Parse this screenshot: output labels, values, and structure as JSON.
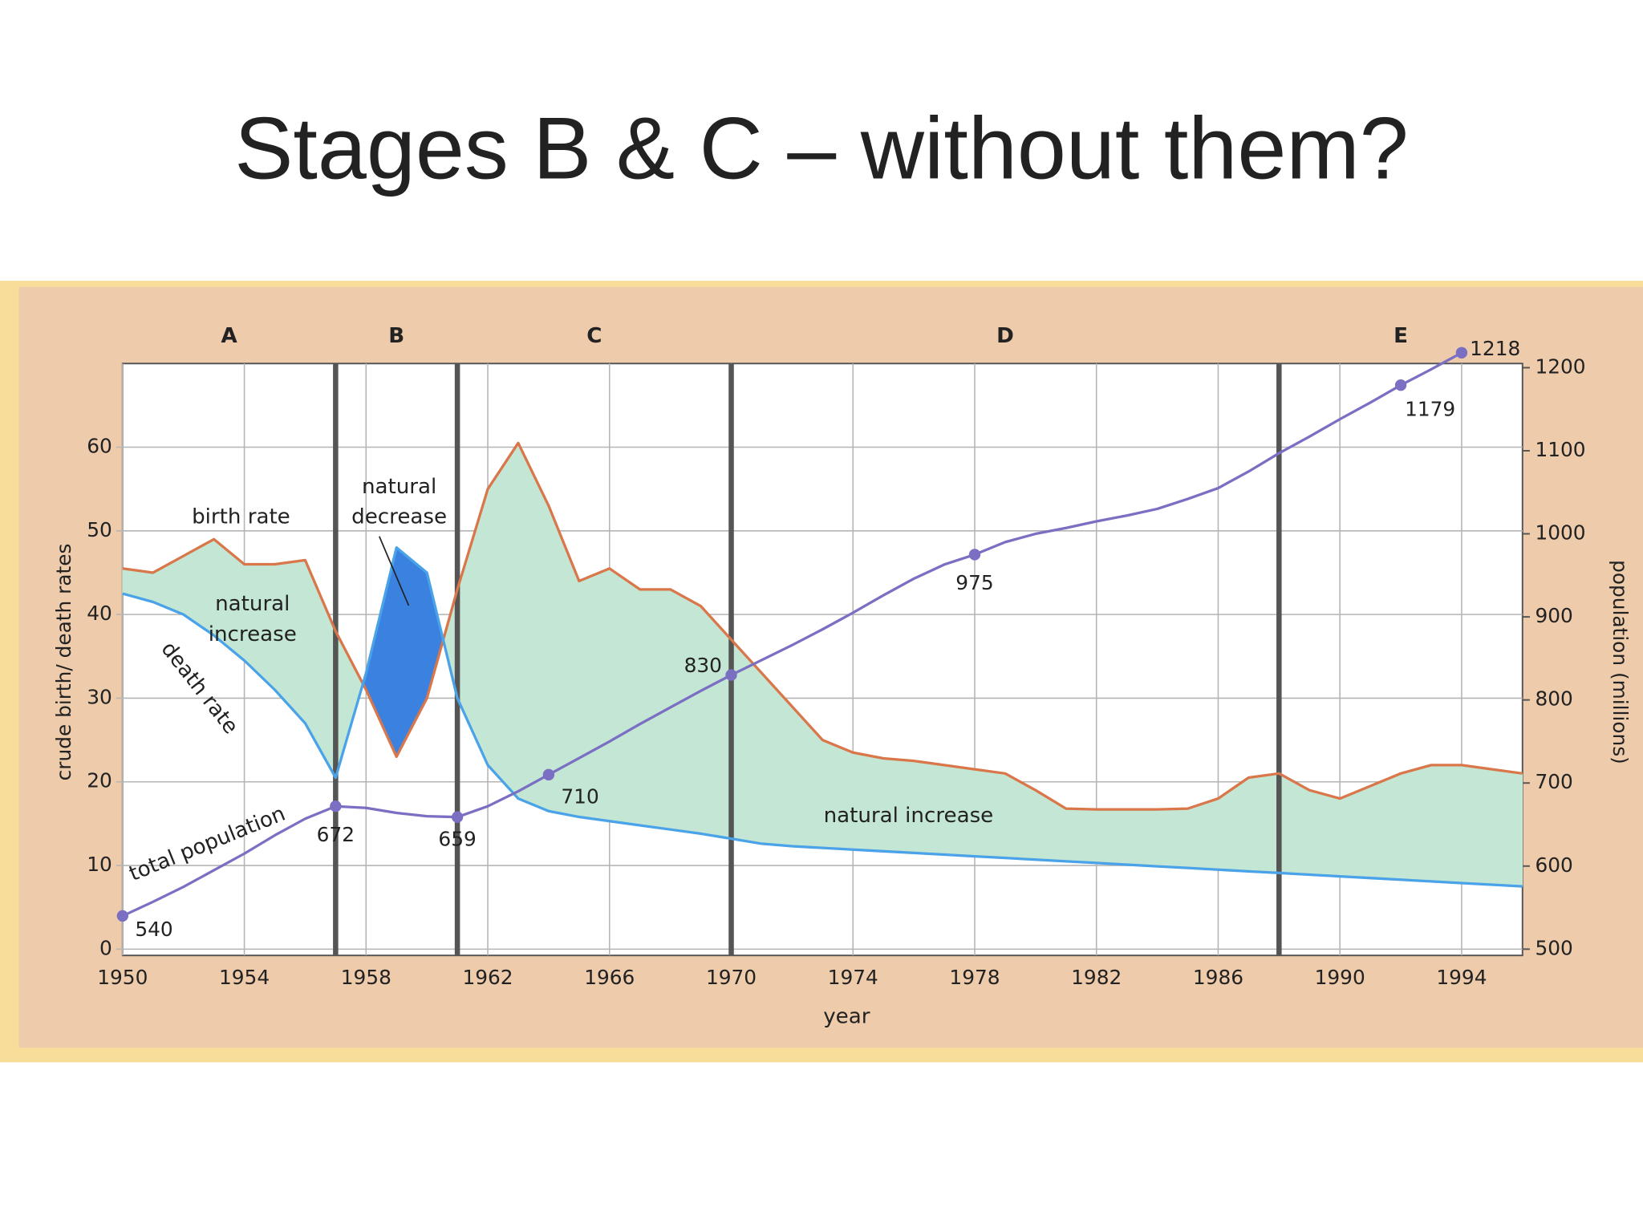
{
  "title": "Stages B & C – without them?",
  "chart_data": {
    "type": "line",
    "x": [
      1950,
      1951,
      1952,
      1953,
      1954,
      1955,
      1956,
      1957,
      1958,
      1959,
      1960,
      1961,
      1962,
      1963,
      1964,
      1965,
      1966,
      1967,
      1968,
      1969,
      1970,
      1971,
      1972,
      1973,
      1974,
      1975,
      1976,
      1977,
      1978,
      1979,
      1980,
      1981,
      1982,
      1983,
      1984,
      1985,
      1986,
      1987,
      1988,
      1989,
      1990,
      1991,
      1992,
      1993,
      1994,
      1995,
      1996
    ],
    "xlim": [
      1950,
      1996
    ],
    "xticks": [
      1950,
      1954,
      1958,
      1962,
      1966,
      1970,
      1974,
      1978,
      1982,
      1986,
      1990,
      1994
    ],
    "xlabel": "year",
    "ylim": [
      0,
      70
    ],
    "yticks": [
      0,
      10,
      20,
      30,
      40,
      50,
      60
    ],
    "ylabel": "crude birth/ death rates",
    "y2lim": [
      500,
      1205
    ],
    "y2ticks": [
      500,
      600,
      700,
      800,
      900,
      1000,
      1100,
      1200
    ],
    "y2label": "population (millions)",
    "grid": true,
    "stages": [
      "A",
      "B",
      "C",
      "D",
      "E"
    ],
    "stage_boundaries": [
      1957,
      1961,
      1970,
      1988
    ],
    "series": [
      {
        "name": "birth rate",
        "color": "#d9774a",
        "values": [
          45.5,
          45,
          47,
          49,
          46,
          46,
          46.5,
          38,
          31,
          23,
          30,
          43,
          55,
          60.5,
          53,
          44,
          45.5,
          43,
          43,
          41,
          37,
          33,
          29,
          25,
          23.5,
          22.8,
          22.5,
          22,
          21.5,
          21,
          19,
          16.8,
          16.7,
          16.7,
          16.7,
          16.8,
          18,
          20.5,
          21,
          19,
          18,
          19.5,
          21,
          22,
          22,
          21.5,
          21
        ]
      },
      {
        "name": "death rate",
        "color": "#4aa3e8",
        "values": [
          42.5,
          41.5,
          40,
          37.5,
          34.5,
          31,
          27,
          20.5,
          33,
          48,
          45,
          30,
          22,
          18,
          16.5,
          15.8,
          15.3,
          14.8,
          14.3,
          13.8,
          13.2,
          12.6,
          12.3,
          12.1,
          11.9,
          11.7,
          11.5,
          11.3,
          11.1,
          10.9,
          10.7,
          10.5,
          10.3,
          10.1,
          9.9,
          9.7,
          9.5,
          9.3,
          9.1,
          8.9,
          8.7,
          8.5,
          8.3,
          8.1,
          7.9,
          7.7,
          7.5
        ]
      },
      {
        "name": "total population",
        "color": "#7a6fc2",
        "axis": "y2",
        "values": [
          540,
          557,
          575,
          595,
          615,
          637,
          657,
          672,
          670,
          664,
          660,
          659,
          672,
          690,
          710,
          730,
          750,
          771,
          791,
          811,
          830,
          848,
          866,
          885,
          905,
          926,
          946,
          963,
          975,
          990,
          1000,
          1007,
          1015,
          1022,
          1030,
          1042,
          1055,
          1075,
          1097,
          1117,
          1138,
          1158,
          1179,
          1198,
          1218,
          null,
          null
        ],
        "value_labels": [
          "540",
          null,
          null,
          null,
          null,
          null,
          null,
          "672",
          null,
          null,
          null,
          "659",
          null,
          null,
          "710",
          null,
          null,
          null,
          null,
          null,
          "830",
          null,
          null,
          null,
          null,
          null,
          null,
          null,
          "975",
          null,
          null,
          null,
          null,
          null,
          null,
          null,
          null,
          null,
          null,
          null,
          null,
          null,
          "1179",
          null,
          "1218",
          null,
          null
        ]
      }
    ],
    "natural_increase_color": "#c4e6d4",
    "natural_decrease_color": "#3b82e0",
    "annotations": [
      [
        "natural",
        "decrease"
      ],
      [
        "natural",
        "increase"
      ],
      "natural increase"
    ]
  }
}
